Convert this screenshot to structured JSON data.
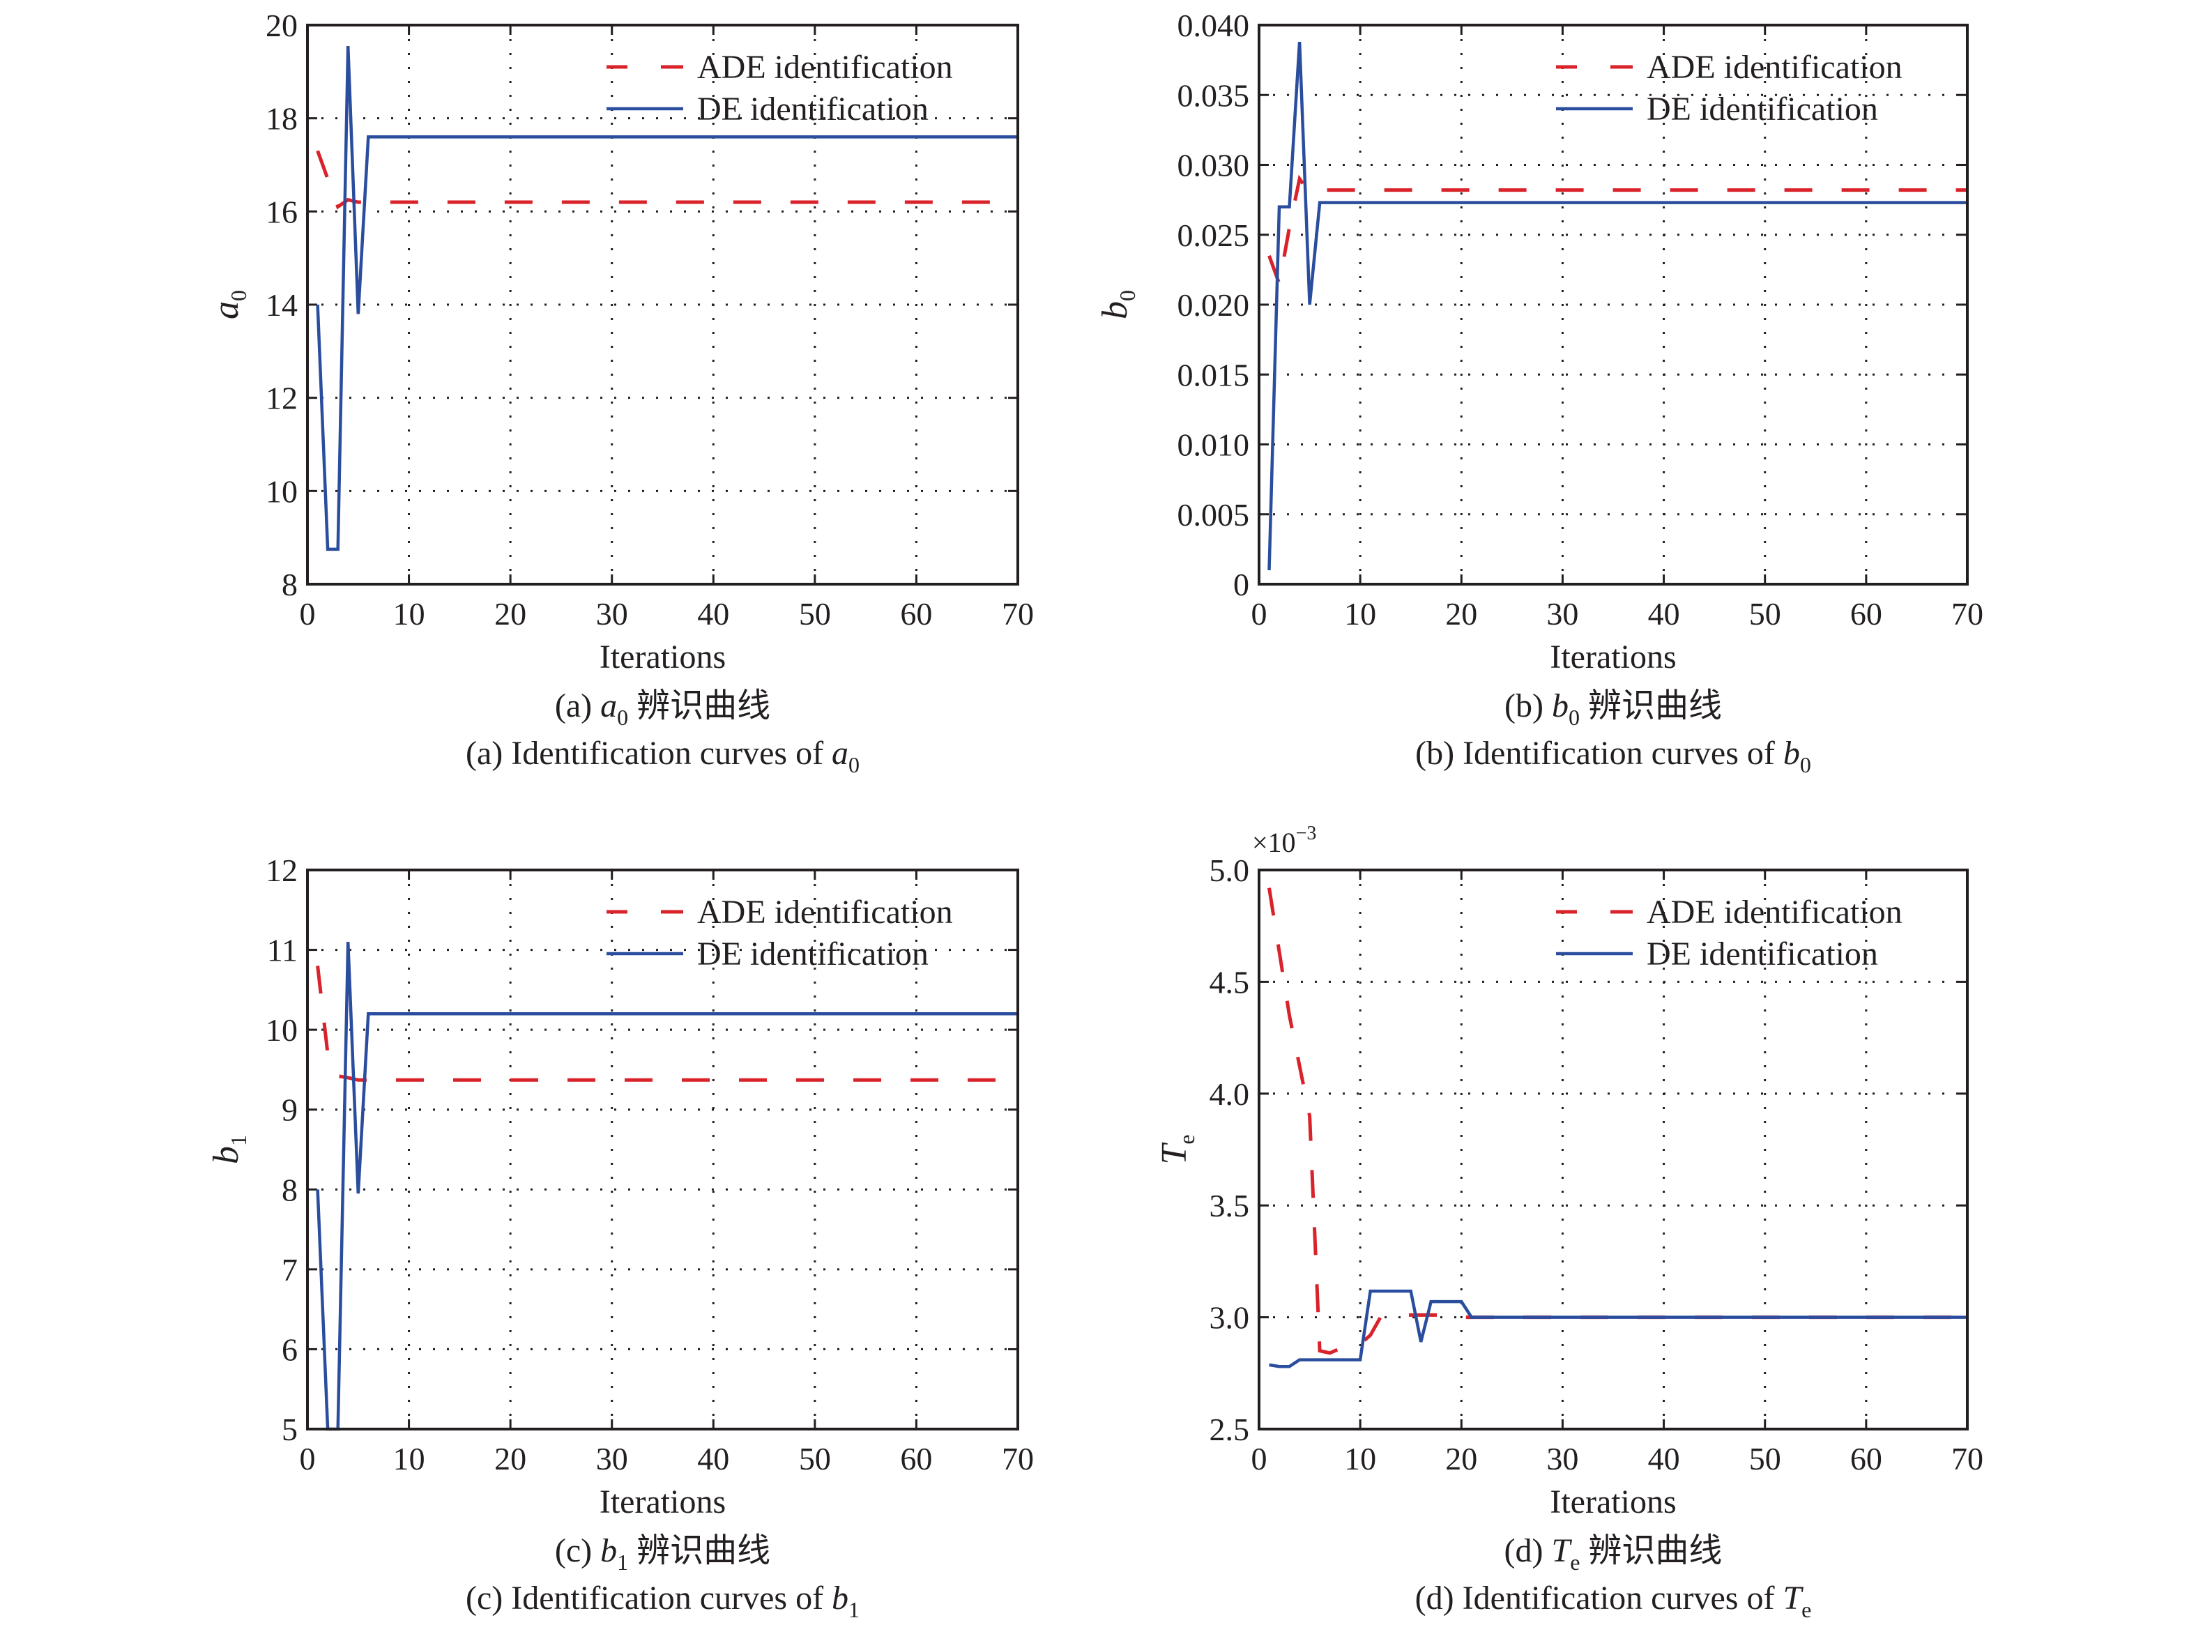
{
  "figure": {
    "legend": {
      "ade_label": "ADE identification",
      "de_label": "DE identification",
      "ade_color": "#d9222a",
      "de_color": "#2b4d9e"
    },
    "x_axis_title": "Iterations"
  },
  "chart_data": [
    {
      "type": "line",
      "panel": "a",
      "ylabel": "a",
      "ylabel_sub": "0",
      "xlabel": "Iterations",
      "xlim": [
        0,
        70
      ],
      "ylim": [
        8,
        20
      ],
      "xticks": [
        "0",
        "10",
        "20",
        "30",
        "40",
        "50",
        "60",
        "70"
      ],
      "xtick_values": [
        0,
        10,
        20,
        30,
        40,
        50,
        60,
        70
      ],
      "yticks": [
        "8",
        "10",
        "12",
        "14",
        "16",
        "18",
        "20"
      ],
      "ytick_values": [
        8,
        10,
        12,
        14,
        16,
        18,
        20
      ],
      "multiplier": "",
      "grid": true,
      "legend_position": "top-right",
      "caption_cn_prefix": "(a) ",
      "caption_cn_var": "a",
      "caption_cn_sub": "0",
      "caption_cn_suffix": " 辨识曲线",
      "caption_en_prefix": "(a) Identification curves of ",
      "caption_en_var": "a",
      "caption_en_sub": "0",
      "series": [
        {
          "name": "ADE identification",
          "style": "dashed",
          "x": [
            1,
            2,
            3,
            4,
            5,
            6,
            70
          ],
          "y": [
            17.3,
            16.7,
            16.1,
            16.25,
            16.2,
            16.2,
            16.2
          ]
        },
        {
          "name": "DE identification",
          "style": "solid",
          "x": [
            1,
            2,
            3,
            4,
            5,
            6,
            70
          ],
          "y": [
            14.0,
            8.75,
            8.75,
            19.55,
            13.8,
            17.6,
            17.6
          ]
        }
      ]
    },
    {
      "type": "line",
      "panel": "b",
      "ylabel": "b",
      "ylabel_sub": "0",
      "xlabel": "Iterations",
      "xlim": [
        0,
        70
      ],
      "ylim": [
        0,
        0.04
      ],
      "xticks": [
        "0",
        "10",
        "20",
        "30",
        "40",
        "50",
        "60",
        "70"
      ],
      "xtick_values": [
        0,
        10,
        20,
        30,
        40,
        50,
        60,
        70
      ],
      "yticks": [
        "0",
        "0.005",
        "0.010",
        "0.015",
        "0.020",
        "0.025",
        "0.030",
        "0.035",
        "0.040"
      ],
      "ytick_values": [
        0,
        0.005,
        0.01,
        0.015,
        0.02,
        0.025,
        0.03,
        0.035,
        0.04
      ],
      "multiplier": "",
      "grid": true,
      "legend_position": "top-right",
      "caption_cn_prefix": "(b) ",
      "caption_cn_var": "b",
      "caption_cn_sub": "0",
      "caption_cn_suffix": " 辨识曲线",
      "caption_en_prefix": "(b) Identification curves of ",
      "caption_en_var": "b",
      "caption_en_sub": "0",
      "series": [
        {
          "name": "ADE identification",
          "style": "dashed",
          "x": [
            1,
            2,
            3,
            4,
            5,
            6,
            70
          ],
          "y": [
            0.0235,
            0.0215,
            0.0255,
            0.029,
            0.028,
            0.0282,
            0.0282
          ]
        },
        {
          "name": "DE identification",
          "style": "solid",
          "x": [
            1,
            2,
            3,
            4,
            5,
            6,
            70
          ],
          "y": [
            0.001,
            0.027,
            0.027,
            0.0388,
            0.02,
            0.0273,
            0.0273
          ]
        }
      ]
    },
    {
      "type": "line",
      "panel": "c",
      "ylabel": "b",
      "ylabel_sub": "1",
      "xlabel": "Iterations",
      "xlim": [
        0,
        70
      ],
      "ylim": [
        5,
        12
      ],
      "xticks": [
        "0",
        "10",
        "20",
        "30",
        "40",
        "50",
        "60",
        "70"
      ],
      "xtick_values": [
        0,
        10,
        20,
        30,
        40,
        50,
        60,
        70
      ],
      "yticks": [
        "5",
        "6",
        "7",
        "8",
        "9",
        "10",
        "11",
        "12"
      ],
      "ytick_values": [
        5,
        6,
        7,
        8,
        9,
        10,
        11,
        12
      ],
      "multiplier": "",
      "grid": true,
      "legend_position": "top-right",
      "caption_cn_prefix": "(c) ",
      "caption_cn_var": "b",
      "caption_cn_sub": "1",
      "caption_cn_suffix": " 辨识曲线",
      "caption_en_prefix": "(c) Identification curves of ",
      "caption_en_var": "b",
      "caption_en_sub": "1",
      "series": [
        {
          "name": "ADE identification",
          "style": "dashed",
          "x": [
            1,
            2,
            3,
            4,
            5,
            6,
            70
          ],
          "y": [
            10.8,
            9.7,
            9.42,
            9.4,
            9.37,
            9.37,
            9.37
          ]
        },
        {
          "name": "DE identification",
          "style": "solid",
          "x": [
            1,
            2,
            3,
            4,
            5,
            6,
            70
          ],
          "y": [
            8.0,
            5.0,
            5.0,
            11.1,
            7.95,
            10.2,
            10.2
          ]
        }
      ]
    },
    {
      "type": "line",
      "panel": "d",
      "ylabel": "T",
      "ylabel_sub": "e",
      "xlabel": "Iterations",
      "xlim": [
        0,
        70
      ],
      "ylim": [
        2.5,
        5.0
      ],
      "xticks": [
        "0",
        "10",
        "20",
        "30",
        "40",
        "50",
        "60",
        "70"
      ],
      "xtick_values": [
        0,
        10,
        20,
        30,
        40,
        50,
        60,
        70
      ],
      "yticks": [
        "2.5",
        "3.0",
        "3.5",
        "4.0",
        "4.5",
        "5.0"
      ],
      "ytick_values": [
        2.5,
        3.0,
        3.5,
        4.0,
        4.5,
        5.0
      ],
      "multiplier": "×10",
      "multiplier_exp": "−3",
      "grid": true,
      "legend_position": "top-right",
      "caption_cn_prefix": "(d) ",
      "caption_cn_var": "T",
      "caption_cn_sub": "e",
      "caption_cn_suffix": " 辨识曲线",
      "caption_en_prefix": "(d) Identification curves of ",
      "caption_en_var": "T",
      "caption_en_sub": "e",
      "series": [
        {
          "name": "ADE identification",
          "style": "dashed",
          "x": [
            1,
            3,
            5,
            6,
            7,
            8,
            10,
            11,
            12,
            13,
            15,
            18,
            20,
            70
          ],
          "y": [
            4.92,
            4.35,
            3.9,
            2.85,
            2.84,
            2.86,
            2.88,
            2.92,
            3.0,
            3.01,
            3.01,
            3.01,
            3.0,
            3.0
          ]
        },
        {
          "name": "DE identification",
          "style": "solid",
          "x": [
            1,
            2,
            3,
            4,
            10,
            11,
            15,
            16,
            17,
            20,
            21,
            70
          ],
          "y": [
            2.787,
            2.78,
            2.78,
            2.81,
            2.81,
            3.117,
            3.117,
            2.89,
            3.07,
            3.07,
            3.0,
            3.0
          ]
        }
      ]
    }
  ]
}
